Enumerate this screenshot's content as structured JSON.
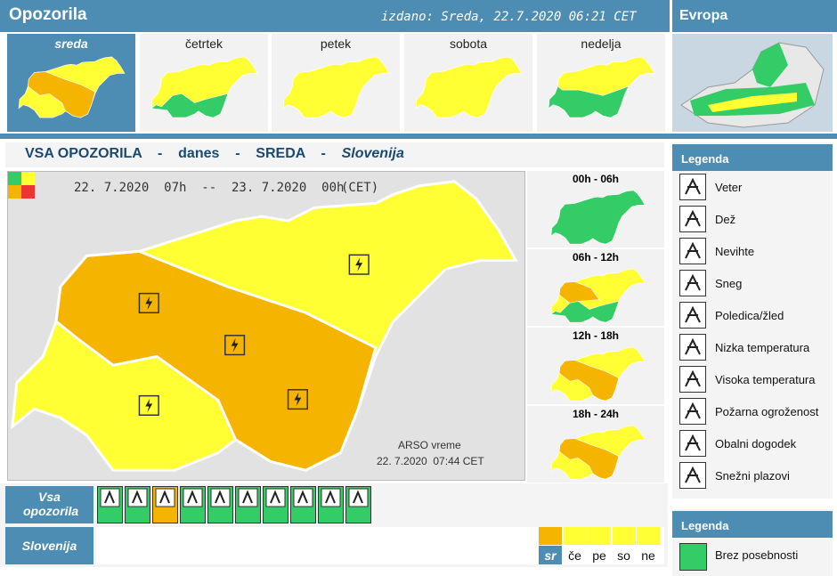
{
  "header": {
    "title": "Opozorila",
    "issued": "izdano: Sreda, 22.7.2020 06:21 CET",
    "europe": "Evropa"
  },
  "days": [
    "sreda",
    "četrtek",
    "petek",
    "sobota",
    "nedelja"
  ],
  "heading": {
    "all": "VSA OPOZORILA",
    "separator": "-",
    "today": "danes",
    "day": "SREDA",
    "region": "Slovenija"
  },
  "map": {
    "period": "22. 7.2020  07h  --  23. 7.2020  00h",
    "timezone": "(CET)",
    "source": "ARSO vreme",
    "timestamp": "22. 7.2020  07:44 CET"
  },
  "periods": [
    "00h - 06h",
    "06h - 12h",
    "12h - 18h",
    "18h - 24h"
  ],
  "legend": {
    "title": "Legenda",
    "items": [
      "Veter",
      "Dež",
      "Nevihte",
      "Sneg",
      "Poledica/žled",
      "Nizka temperatura",
      "Visoka temperatura",
      "Požarna ogroženost",
      "Obalni dogodek",
      "Snežni plazovi"
    ]
  },
  "legend2": {
    "title": "Legenda",
    "items": [
      "Brez posebnosti"
    ]
  },
  "bottom": {
    "all": "Vsa opozorila",
    "region": "Slovenija",
    "days": [
      "sr",
      "če",
      "pe",
      "so",
      "ne"
    ]
  }
}
